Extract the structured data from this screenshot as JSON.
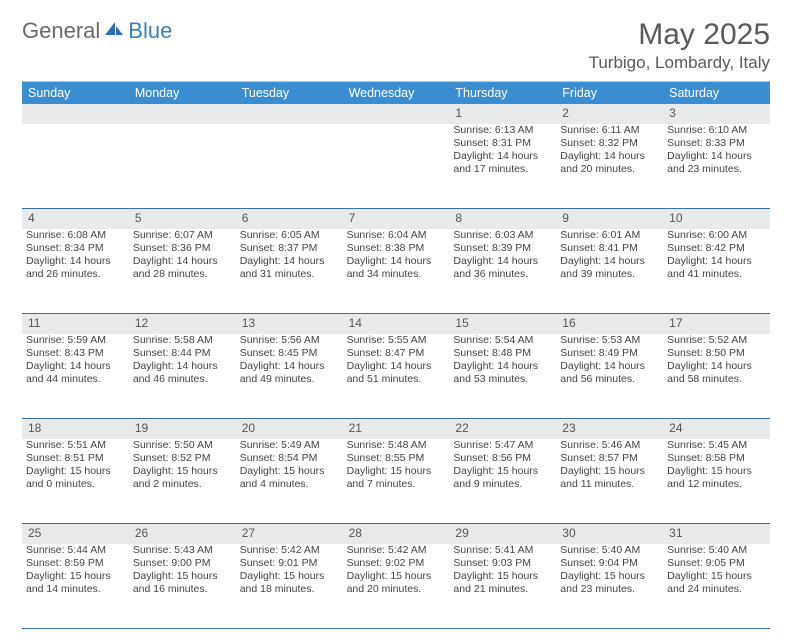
{
  "brand": {
    "part1": "General",
    "part2": "Blue"
  },
  "title": "May 2025",
  "location": "Turbigo, Lombardy, Italy",
  "colors": {
    "header_band": "#3b8dd1",
    "header_text": "#ffffff",
    "daynum_band": "#e8e9ea",
    "week_divider": "#3b6fa0",
    "text": "#444444",
    "title_text": "#5a5a5a"
  },
  "typography": {
    "title_fontsize": 30,
    "location_fontsize": 17,
    "dow_fontsize": 12.5,
    "daynum_fontsize": 12,
    "body_fontsize": 10.5
  },
  "calendar": {
    "type": "table",
    "columns": [
      "Sunday",
      "Monday",
      "Tuesday",
      "Wednesday",
      "Thursday",
      "Friday",
      "Saturday"
    ],
    "weeks": [
      [
        null,
        null,
        null,
        null,
        {
          "n": "1",
          "sunrise": "6:13 AM",
          "sunset": "8:31 PM",
          "daylight": "14 hours and 17 minutes."
        },
        {
          "n": "2",
          "sunrise": "6:11 AM",
          "sunset": "8:32 PM",
          "daylight": "14 hours and 20 minutes."
        },
        {
          "n": "3",
          "sunrise": "6:10 AM",
          "sunset": "8:33 PM",
          "daylight": "14 hours and 23 minutes."
        }
      ],
      [
        {
          "n": "4",
          "sunrise": "6:08 AM",
          "sunset": "8:34 PM",
          "daylight": "14 hours and 26 minutes."
        },
        {
          "n": "5",
          "sunrise": "6:07 AM",
          "sunset": "8:36 PM",
          "daylight": "14 hours and 28 minutes."
        },
        {
          "n": "6",
          "sunrise": "6:05 AM",
          "sunset": "8:37 PM",
          "daylight": "14 hours and 31 minutes."
        },
        {
          "n": "7",
          "sunrise": "6:04 AM",
          "sunset": "8:38 PM",
          "daylight": "14 hours and 34 minutes."
        },
        {
          "n": "8",
          "sunrise": "6:03 AM",
          "sunset": "8:39 PM",
          "daylight": "14 hours and 36 minutes."
        },
        {
          "n": "9",
          "sunrise": "6:01 AM",
          "sunset": "8:41 PM",
          "daylight": "14 hours and 39 minutes."
        },
        {
          "n": "10",
          "sunrise": "6:00 AM",
          "sunset": "8:42 PM",
          "daylight": "14 hours and 41 minutes."
        }
      ],
      [
        {
          "n": "11",
          "sunrise": "5:59 AM",
          "sunset": "8:43 PM",
          "daylight": "14 hours and 44 minutes."
        },
        {
          "n": "12",
          "sunrise": "5:58 AM",
          "sunset": "8:44 PM",
          "daylight": "14 hours and 46 minutes."
        },
        {
          "n": "13",
          "sunrise": "5:56 AM",
          "sunset": "8:45 PM",
          "daylight": "14 hours and 49 minutes."
        },
        {
          "n": "14",
          "sunrise": "5:55 AM",
          "sunset": "8:47 PM",
          "daylight": "14 hours and 51 minutes."
        },
        {
          "n": "15",
          "sunrise": "5:54 AM",
          "sunset": "8:48 PM",
          "daylight": "14 hours and 53 minutes."
        },
        {
          "n": "16",
          "sunrise": "5:53 AM",
          "sunset": "8:49 PM",
          "daylight": "14 hours and 56 minutes."
        },
        {
          "n": "17",
          "sunrise": "5:52 AM",
          "sunset": "8:50 PM",
          "daylight": "14 hours and 58 minutes."
        }
      ],
      [
        {
          "n": "18",
          "sunrise": "5:51 AM",
          "sunset": "8:51 PM",
          "daylight": "15 hours and 0 minutes."
        },
        {
          "n": "19",
          "sunrise": "5:50 AM",
          "sunset": "8:52 PM",
          "daylight": "15 hours and 2 minutes."
        },
        {
          "n": "20",
          "sunrise": "5:49 AM",
          "sunset": "8:54 PM",
          "daylight": "15 hours and 4 minutes."
        },
        {
          "n": "21",
          "sunrise": "5:48 AM",
          "sunset": "8:55 PM",
          "daylight": "15 hours and 7 minutes."
        },
        {
          "n": "22",
          "sunrise": "5:47 AM",
          "sunset": "8:56 PM",
          "daylight": "15 hours and 9 minutes."
        },
        {
          "n": "23",
          "sunrise": "5:46 AM",
          "sunset": "8:57 PM",
          "daylight": "15 hours and 11 minutes."
        },
        {
          "n": "24",
          "sunrise": "5:45 AM",
          "sunset": "8:58 PM",
          "daylight": "15 hours and 12 minutes."
        }
      ],
      [
        {
          "n": "25",
          "sunrise": "5:44 AM",
          "sunset": "8:59 PM",
          "daylight": "15 hours and 14 minutes."
        },
        {
          "n": "26",
          "sunrise": "5:43 AM",
          "sunset": "9:00 PM",
          "daylight": "15 hours and 16 minutes."
        },
        {
          "n": "27",
          "sunrise": "5:42 AM",
          "sunset": "9:01 PM",
          "daylight": "15 hours and 18 minutes."
        },
        {
          "n": "28",
          "sunrise": "5:42 AM",
          "sunset": "9:02 PM",
          "daylight": "15 hours and 20 minutes."
        },
        {
          "n": "29",
          "sunrise": "5:41 AM",
          "sunset": "9:03 PM",
          "daylight": "15 hours and 21 minutes."
        },
        {
          "n": "30",
          "sunrise": "5:40 AM",
          "sunset": "9:04 PM",
          "daylight": "15 hours and 23 minutes."
        },
        {
          "n": "31",
          "sunrise": "5:40 AM",
          "sunset": "9:05 PM",
          "daylight": "15 hours and 24 minutes."
        }
      ]
    ],
    "labels": {
      "sunrise": "Sunrise:",
      "sunset": "Sunset:",
      "daylight": "Daylight:"
    }
  }
}
